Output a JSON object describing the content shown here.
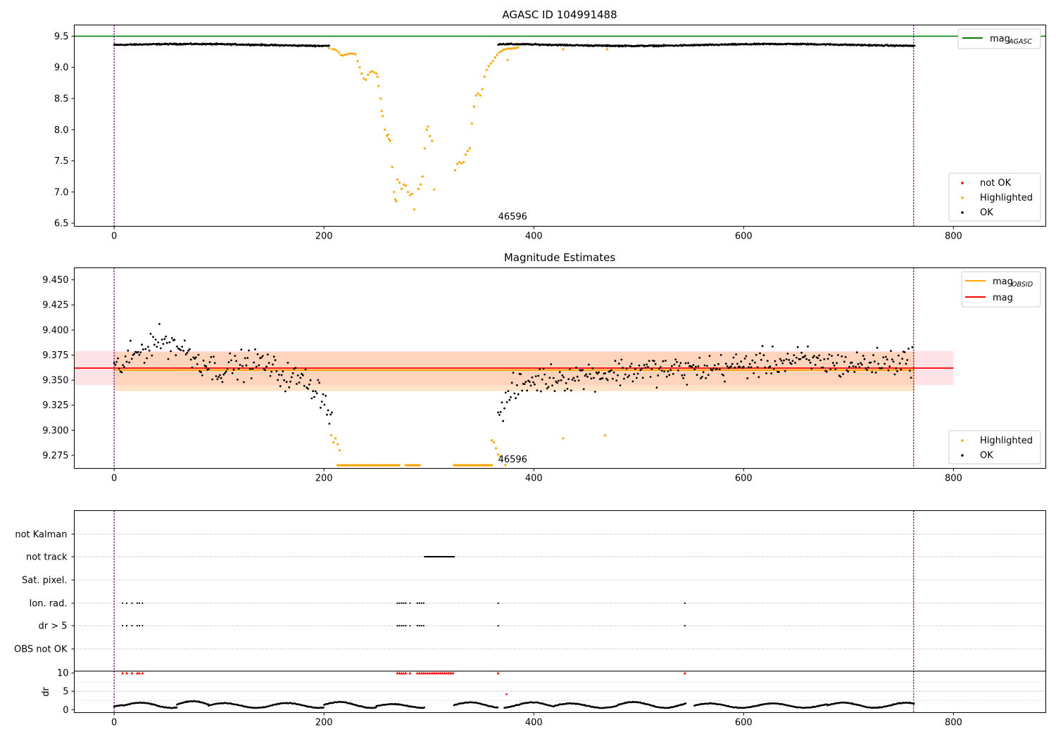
{
  "chart_data": [
    {
      "type": "scatter",
      "title": "AGASC ID 104991488",
      "xlim": [
        -38,
        888
      ],
      "ylim": [
        6.45,
        9.68
      ],
      "x_ticks": [
        0,
        200,
        400,
        600,
        800
      ],
      "y_ticks": [
        "6.5",
        "7.0",
        "7.5",
        "8.0",
        "8.5",
        "9.0",
        "9.5"
      ],
      "mag_agasc": 9.5,
      "mag_agasc_color": "#008000",
      "obs_start": 0,
      "obs_end": 762,
      "obsid_label": "46596",
      "obsid_label_x": 366,
      "legend_line": {
        "label": "mag",
        "sub": "AGASC"
      },
      "legend_points": [
        {
          "label": "not OK",
          "color": "#ff0000"
        },
        {
          "label": "Highlighted",
          "color": "#ffa500"
        },
        {
          "label": "OK",
          "color": "#000000"
        }
      ],
      "ok_series": {
        "color": "#000000",
        "x_ranges": [
          [
            0,
            205
          ],
          [
            366,
            763
          ]
        ],
        "baseline": 9.36,
        "scatter": 0.018,
        "wave_amplitude": 0.015
      },
      "highlighted_points": [
        [
          205,
          9.31
        ],
        [
          208,
          9.29
        ],
        [
          210,
          9.29
        ],
        [
          212,
          9.27
        ],
        [
          214,
          9.24
        ],
        [
          216,
          9.2
        ],
        [
          218,
          9.19
        ],
        [
          220,
          9.2
        ],
        [
          222,
          9.21
        ],
        [
          224,
          9.22
        ],
        [
          226,
          9.22
        ],
        [
          228,
          9.22
        ],
        [
          230,
          9.21
        ],
        [
          232,
          9.1
        ],
        [
          234,
          9.0
        ],
        [
          236,
          8.9
        ],
        [
          238,
          8.82
        ],
        [
          240,
          8.8
        ],
        [
          242,
          8.88
        ],
        [
          244,
          8.92
        ],
        [
          246,
          8.94
        ],
        [
          248,
          8.92
        ],
        [
          250,
          8.9
        ],
        [
          251,
          8.85
        ],
        [
          252,
          8.7
        ],
        [
          254,
          8.5
        ],
        [
          255,
          8.3
        ],
        [
          256,
          8.22
        ],
        [
          258,
          8.0
        ],
        [
          260,
          7.9
        ],
        [
          261,
          7.92
        ],
        [
          262,
          7.85
        ],
        [
          263,
          7.82
        ],
        [
          265,
          7.4
        ],
        [
          267,
          7.0
        ],
        [
          268,
          6.88
        ],
        [
          269,
          6.85
        ],
        [
          270,
          7.2
        ],
        [
          272,
          7.15
        ],
        [
          274,
          7.05
        ],
        [
          276,
          7.12
        ],
        [
          278,
          7.1
        ],
        [
          280,
          7.0
        ],
        [
          282,
          6.95
        ],
        [
          284,
          6.97
        ],
        [
          286,
          6.72
        ],
        [
          290,
          7.05
        ],
        [
          292,
          7.12
        ],
        [
          294,
          7.25
        ],
        [
          296,
          7.7
        ],
        [
          298,
          8.0
        ],
        [
          299,
          8.05
        ],
        [
          301,
          7.9
        ],
        [
          303,
          7.82
        ],
        [
          305,
          7.04
        ],
        [
          325,
          7.35
        ],
        [
          327,
          7.45
        ],
        [
          329,
          7.48
        ],
        [
          331,
          7.46
        ],
        [
          333,
          7.48
        ],
        [
          335,
          7.6
        ],
        [
          337,
          7.66
        ],
        [
          339,
          7.7
        ],
        [
          341,
          8.1
        ],
        [
          343,
          8.37
        ],
        [
          345,
          8.55
        ],
        [
          347,
          8.58
        ],
        [
          349,
          8.55
        ],
        [
          351,
          8.65
        ],
        [
          353,
          8.85
        ],
        [
          355,
          8.96
        ],
        [
          357,
          9.02
        ],
        [
          359,
          9.06
        ],
        [
          361,
          9.1
        ],
        [
          363,
          9.16
        ],
        [
          365,
          9.2
        ],
        [
          367,
          9.24
        ],
        [
          369,
          9.26
        ],
        [
          371,
          9.28
        ],
        [
          373,
          9.29
        ],
        [
          375,
          9.3
        ],
        [
          377,
          9.3
        ],
        [
          379,
          9.3
        ],
        [
          381,
          9.31
        ],
        [
          383,
          9.31
        ],
        [
          385,
          9.32
        ],
        [
          375,
          9.12
        ],
        [
          428,
          9.29
        ],
        [
          470,
          9.29
        ]
      ],
      "highlighted_color": "#ffa500"
    },
    {
      "type": "scatter",
      "title": "Magnitude Estimates",
      "xlim": [
        -38,
        888
      ],
      "ylim": [
        9.262,
        9.462
      ],
      "x_ticks": [
        0,
        200,
        400,
        600,
        800
      ],
      "y_ticks": [
        "9.275",
        "9.300",
        "9.325",
        "9.350",
        "9.375",
        "9.400",
        "9.425",
        "9.450"
      ],
      "mag_value": 9.362,
      "mag_obsid_value": 9.36,
      "mag_color": "#ff0000",
      "mag_obsid_color": "#ffa500",
      "mag_band": [
        9.345,
        9.379
      ],
      "mag_obsid_band": [
        9.339,
        9.378
      ],
      "obs_start": 0,
      "obs_end": 762,
      "obsid_label": "46596",
      "obsid_label_x": 366,
      "legend_lines": [
        {
          "label": "mag",
          "sub": "OBSID",
          "color": "#ffa500"
        },
        {
          "label": "mag",
          "sub": "",
          "color": "#ff0000"
        }
      ],
      "legend_points": [
        {
          "label": "Highlighted",
          "color": "#ffa500"
        },
        {
          "label": "OK",
          "color": "#000000"
        }
      ],
      "ok_profile": [
        [
          0,
          9.36
        ],
        [
          20,
          9.375
        ],
        [
          40,
          9.39
        ],
        [
          60,
          9.385
        ],
        [
          80,
          9.37
        ],
        [
          100,
          9.36
        ],
        [
          120,
          9.365
        ],
        [
          140,
          9.368
        ],
        [
          160,
          9.355
        ],
        [
          180,
          9.35
        ],
        [
          195,
          9.34
        ],
        [
          202,
          9.33
        ],
        [
          208,
          9.305
        ],
        [
          366,
          9.315
        ],
        [
          380,
          9.34
        ],
        [
          400,
          9.35
        ],
        [
          450,
          9.355
        ],
        [
          500,
          9.36
        ],
        [
          550,
          9.36
        ],
        [
          600,
          9.365
        ],
        [
          650,
          9.37
        ],
        [
          700,
          9.365
        ],
        [
          762,
          9.37
        ]
      ],
      "ok_scatter": 0.012,
      "highlighted_points": [
        [
          207,
          9.295
        ],
        [
          209,
          9.288
        ],
        [
          211,
          9.292
        ],
        [
          213,
          9.286
        ],
        [
          215,
          9.28
        ],
        [
          360,
          9.29
        ],
        [
          362,
          9.288
        ],
        [
          364,
          9.282
        ],
        [
          366,
          9.276
        ],
        [
          368,
          9.274
        ],
        [
          428,
          9.292
        ],
        [
          468,
          9.295
        ]
      ],
      "below_range_segments": [
        [
          213,
          272
        ],
        [
          278,
          292
        ],
        [
          324,
          360
        ],
        [
          373,
          374
        ]
      ]
    },
    {
      "type": "scatter",
      "xlim": [
        -38,
        888
      ],
      "flag_labels": [
        "not Kalman",
        "not track",
        "Sat. pixel.",
        "Ion. rad.",
        "dr > 5",
        "OBS not OK"
      ],
      "dr_ticks": [
        "0",
        "5",
        "10"
      ],
      "dr_ylabel": "dr",
      "dr_ylim": [
        -0.8,
        10.5
      ],
      "x_ticks": [
        0,
        200,
        400,
        600,
        800
      ],
      "obs_start": 0,
      "obs_end": 762,
      "not_track_range": [
        296,
        324
      ],
      "ion_rad_x": [
        8,
        12,
        17,
        22,
        24,
        27,
        270,
        272,
        274,
        276,
        278,
        282,
        289,
        291,
        293,
        295,
        366,
        544
      ],
      "dr5_x": [
        8,
        12,
        17,
        22,
        24,
        27,
        270,
        272,
        274,
        276,
        278,
        282,
        289,
        291,
        293,
        295,
        366,
        544
      ],
      "dr_flag_x": [
        8,
        12,
        17,
        22,
        24,
        27,
        270,
        272,
        274,
        276,
        278,
        282,
        289,
        291,
        293,
        295,
        297,
        299,
        301,
        303,
        305,
        307,
        309,
        311,
        313,
        315,
        317,
        319,
        321,
        323,
        366,
        544
      ],
      "dr_outlier": [
        374,
        4.2
      ],
      "dr_gaps": [
        [
          296,
          324
        ],
        [
          366,
          372
        ],
        [
          547,
          553
        ]
      ],
      "dr_segments": [
        [
          0,
          10,
          0.8
        ],
        [
          10,
          60,
          1.4
        ],
        [
          60,
          90,
          1.8
        ],
        [
          90,
          200,
          1.3
        ],
        [
          200,
          250,
          1.6
        ],
        [
          250,
          300,
          1.0
        ],
        [
          324,
          420,
          1.5
        ],
        [
          420,
          480,
          1.2
        ],
        [
          480,
          545,
          1.6
        ],
        [
          553,
          680,
          1.2
        ],
        [
          680,
          763,
          1.4
        ]
      ]
    }
  ]
}
